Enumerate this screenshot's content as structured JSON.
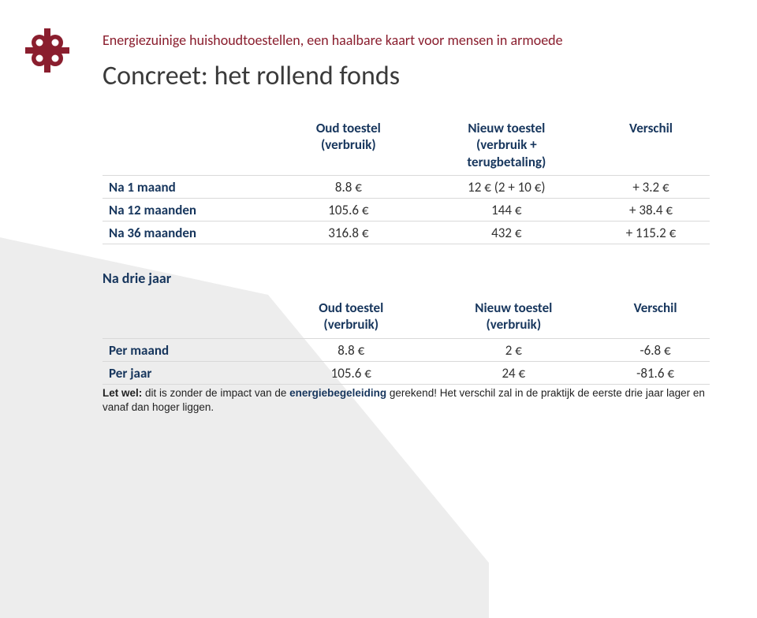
{
  "colors": {
    "brand": "#8a1e2e",
    "heading": "#17365d",
    "title": "#3a3a3a",
    "body": "#333333",
    "row_border": "#d9d9d9",
    "bg_poly": "#ededed",
    "background": "#ffffff"
  },
  "typography": {
    "body_family": "Calibri",
    "footnote_family": "Arial",
    "header_fontsize": 18,
    "title_fontsize": 34,
    "table_fontsize": 17,
    "footnote_fontsize": 13.5
  },
  "logo": {
    "type": "knot-icon",
    "color": "#8a1e2e"
  },
  "header": "Energiezuinige huishoudtoestellen, een haalbare kaart voor mensen in armoede",
  "title": "Concreet: het rollend fonds",
  "table1": {
    "head": [
      "",
      "Oud toestel\n(verbruik)",
      "Nieuw toestel\n(verbruik +\nterugbetaling)",
      "Verschil"
    ],
    "rows": [
      {
        "label": "Na 1 maand",
        "c1": "8.8 €",
        "c2": "12 € (2 + 10 €)",
        "c3": "+ 3.2 €"
      },
      {
        "label": "Na 12 maanden",
        "c1": "105.6 €",
        "c2": "144 €",
        "c3": "+ 38.4 €"
      },
      {
        "label": "Na 36 maanden",
        "c1": "316.8 €",
        "c2": "432 €",
        "c3": "+ 115.2 €"
      }
    ]
  },
  "between": "Na drie jaar",
  "table2": {
    "head": [
      "",
      "Oud toestel\n(verbruik)",
      "Nieuw toestel\n(verbruik)",
      "Verschil"
    ],
    "rows": [
      {
        "label": "Per maand",
        "c1": "8.8 €",
        "c2": "2 €",
        "c3": "-6.8 €"
      },
      {
        "label": "Per jaar",
        "c1": "105.6 €",
        "c2": "24 €",
        "c3": "-81.6 €"
      }
    ]
  },
  "footnote": {
    "lead": "Let wel:",
    "pre": " dit is zonder de impact van de ",
    "link": "energiebegeleiding",
    "post": " gerekend! Het verschil zal in de praktijk de eerste drie jaar lager en vanaf dan hoger liggen."
  }
}
